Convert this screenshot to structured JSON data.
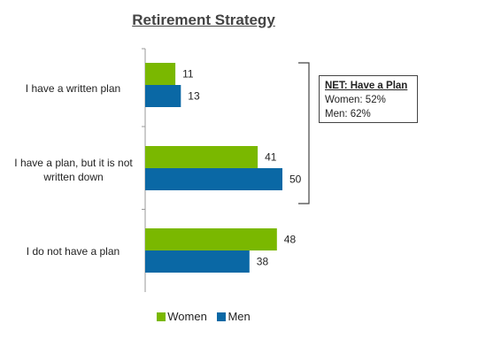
{
  "chart_data": {
    "type": "bar",
    "orientation": "horizontal",
    "title": "Retirement Strategy",
    "categories": [
      "I have a written plan",
      "I have a plan, but it is not written down",
      "I do not have a plan"
    ],
    "series": [
      {
        "name": "Women",
        "color": "#7AB800",
        "values": [
          11,
          41,
          48
        ]
      },
      {
        "name": "Men",
        "color": "#0A68A5",
        "values": [
          13,
          50,
          38
        ]
      }
    ],
    "legend": "bottom",
    "grid": false,
    "annotation": {
      "title": "NET: Have a Plan",
      "lines": [
        "Women: 52%",
        "Men: 62%"
      ]
    }
  }
}
